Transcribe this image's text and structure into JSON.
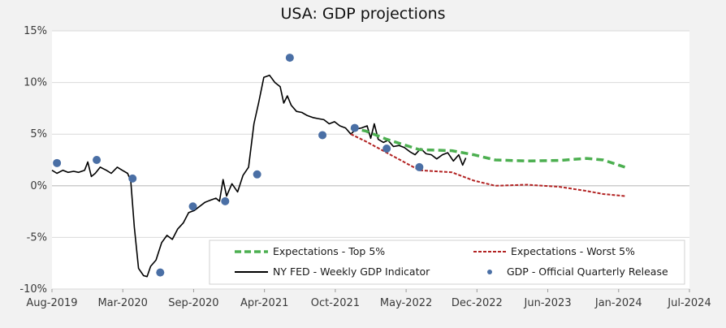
{
  "chart_data": {
    "type": "line",
    "title": "USA: GDP projections",
    "xlabel": "",
    "ylabel": "",
    "x_ticks": [
      "Aug-2019",
      "Mar-2020",
      "Sep-2020",
      "Apr-2021",
      "Oct-2021",
      "May-2022",
      "Dec-2022",
      "Jun-2023",
      "Jan-2024",
      "Jul-2024"
    ],
    "x_range": [
      "2019-08-01",
      "2024-07-01"
    ],
    "y_ticks": [
      "15%",
      "10%",
      "5%",
      "0%",
      "-5%",
      "-10%"
    ],
    "ylim": [
      -10,
      15
    ],
    "grid": "horizontal",
    "legend_position": "bottom-inside",
    "legend": {
      "top5": "Expectations - Top 5%",
      "worst5": "Expectations - Worst 5%",
      "weekly": "NY FED - Weekly GDP Indicator",
      "official": "GDP - Official Quarterly Release"
    },
    "colors": {
      "top5": "#4caf50",
      "worst5": "#b22222",
      "weekly": "#000000",
      "official": "#4a6fa5",
      "grid": "#d9d9d9",
      "bg": "#f2f2f2"
    },
    "series": [
      {
        "key": "weekly",
        "name": "NY FED - Weekly GDP Indicator",
        "style": "solid",
        "points": [
          [
            "2019-08-01",
            1.5
          ],
          [
            "2019-08-15",
            1.2
          ],
          [
            "2019-09-01",
            1.5
          ],
          [
            "2019-09-15",
            1.3
          ],
          [
            "2019-10-01",
            1.4
          ],
          [
            "2019-10-15",
            1.3
          ],
          [
            "2019-11-01",
            1.5
          ],
          [
            "2019-11-10",
            2.3
          ],
          [
            "2019-11-20",
            0.9
          ],
          [
            "2019-12-01",
            1.2
          ],
          [
            "2019-12-15",
            1.8
          ],
          [
            "2020-01-01",
            1.5
          ],
          [
            "2020-01-15",
            1.2
          ],
          [
            "2020-02-01",
            1.8
          ],
          [
            "2020-02-15",
            1.5
          ],
          [
            "2020-03-01",
            1.2
          ],
          [
            "2020-03-10",
            0.5
          ],
          [
            "2020-03-20",
            -4.0
          ],
          [
            "2020-04-01",
            -8.0
          ],
          [
            "2020-04-15",
            -8.7
          ],
          [
            "2020-04-25",
            -8.8
          ],
          [
            "2020-05-05",
            -7.8
          ],
          [
            "2020-05-20",
            -7.2
          ],
          [
            "2020-06-05",
            -5.5
          ],
          [
            "2020-06-20",
            -4.8
          ],
          [
            "2020-07-05",
            -5.2
          ],
          [
            "2020-07-20",
            -4.2
          ],
          [
            "2020-08-05",
            -3.6
          ],
          [
            "2020-08-20",
            -2.6
          ],
          [
            "2020-09-05",
            -2.4
          ],
          [
            "2020-09-20",
            -2.0
          ],
          [
            "2020-10-05",
            -1.6
          ],
          [
            "2020-10-20",
            -1.4
          ],
          [
            "2020-11-05",
            -1.2
          ],
          [
            "2020-11-15",
            -1.5
          ],
          [
            "2020-11-25",
            0.6
          ],
          [
            "2020-12-05",
            -1.0
          ],
          [
            "2020-12-20",
            0.2
          ],
          [
            "2021-01-05",
            -0.6
          ],
          [
            "2021-01-20",
            1.0
          ],
          [
            "2021-02-05",
            1.8
          ],
          [
            "2021-02-20",
            6.0
          ],
          [
            "2021-03-05",
            8.0
          ],
          [
            "2021-03-20",
            10.5
          ],
          [
            "2021-04-05",
            10.7
          ],
          [
            "2021-04-20",
            10.0
          ],
          [
            "2021-05-05",
            9.6
          ],
          [
            "2021-05-15",
            8.0
          ],
          [
            "2021-05-25",
            8.7
          ],
          [
            "2021-06-05",
            7.8
          ],
          [
            "2021-06-20",
            7.2
          ],
          [
            "2021-07-05",
            7.1
          ],
          [
            "2021-07-20",
            6.8
          ],
          [
            "2021-08-05",
            6.6
          ],
          [
            "2021-08-20",
            6.5
          ],
          [
            "2021-09-05",
            6.4
          ],
          [
            "2021-09-20",
            6.0
          ],
          [
            "2021-10-05",
            6.2
          ],
          [
            "2021-10-20",
            5.8
          ],
          [
            "2021-11-05",
            5.6
          ],
          [
            "2021-11-20",
            5.0
          ],
          [
            "2021-12-05",
            5.5
          ],
          [
            "2021-12-20",
            5.6
          ],
          [
            "2022-01-05",
            5.8
          ],
          [
            "2022-01-15",
            4.6
          ],
          [
            "2022-01-25",
            6.0
          ],
          [
            "2022-02-05",
            4.5
          ],
          [
            "2022-02-20",
            4.2
          ],
          [
            "2022-03-05",
            4.4
          ],
          [
            "2022-03-20",
            3.8
          ],
          [
            "2022-04-05",
            3.9
          ],
          [
            "2022-04-20",
            3.7
          ],
          [
            "2022-05-05",
            3.3
          ],
          [
            "2022-05-20",
            3.0
          ],
          [
            "2022-06-05",
            3.6
          ],
          [
            "2022-06-20",
            3.1
          ],
          [
            "2022-07-05",
            3.0
          ],
          [
            "2022-07-20",
            2.6
          ],
          [
            "2022-08-05",
            3.0
          ],
          [
            "2022-08-20",
            3.2
          ],
          [
            "2022-09-05",
            2.4
          ],
          [
            "2022-09-20",
            3.0
          ],
          [
            "2022-10-01",
            2.0
          ],
          [
            "2022-10-10",
            2.7
          ]
        ]
      },
      {
        "key": "top5",
        "name": "Expectations - Top 5%",
        "style": "dashed",
        "points": [
          [
            "2021-11-20",
            5.6
          ],
          [
            "2022-01-01",
            5.3
          ],
          [
            "2022-03-01",
            4.5
          ],
          [
            "2022-06-01",
            3.5
          ],
          [
            "2022-09-01",
            3.4
          ],
          [
            "2022-11-01",
            3.0
          ],
          [
            "2023-01-01",
            2.5
          ],
          [
            "2023-04-01",
            2.4
          ],
          [
            "2023-07-01",
            2.45
          ],
          [
            "2023-09-15",
            2.65
          ],
          [
            "2023-11-01",
            2.5
          ],
          [
            "2024-01-01",
            1.8
          ]
        ]
      },
      {
        "key": "worst5",
        "name": "Expectations - Worst 5%",
        "style": "dashed",
        "points": [
          [
            "2021-11-20",
            5.0
          ],
          [
            "2022-01-01",
            4.3
          ],
          [
            "2022-03-01",
            3.2
          ],
          [
            "2022-06-01",
            1.5
          ],
          [
            "2022-09-01",
            1.3
          ],
          [
            "2022-11-01",
            0.5
          ],
          [
            "2023-01-01",
            0.0
          ],
          [
            "2023-04-01",
            0.1
          ],
          [
            "2023-07-01",
            -0.1
          ],
          [
            "2023-09-15",
            -0.5
          ],
          [
            "2023-11-01",
            -0.8
          ],
          [
            "2024-01-01",
            -1.0
          ]
        ]
      },
      {
        "key": "official",
        "name": "GDP - Official Quarterly Release",
        "style": "markers",
        "points": [
          [
            "2019-08-15",
            2.2
          ],
          [
            "2019-12-05",
            2.5
          ],
          [
            "2020-03-15",
            0.7
          ],
          [
            "2020-06-01",
            -8.4
          ],
          [
            "2020-09-01",
            -2.0
          ],
          [
            "2020-12-01",
            -1.5
          ],
          [
            "2021-03-01",
            1.1
          ],
          [
            "2021-06-01",
            12.4
          ],
          [
            "2021-09-01",
            4.9
          ],
          [
            "2021-12-01",
            5.6
          ],
          [
            "2022-03-01",
            3.6
          ],
          [
            "2022-06-01",
            1.8
          ]
        ]
      }
    ]
  }
}
